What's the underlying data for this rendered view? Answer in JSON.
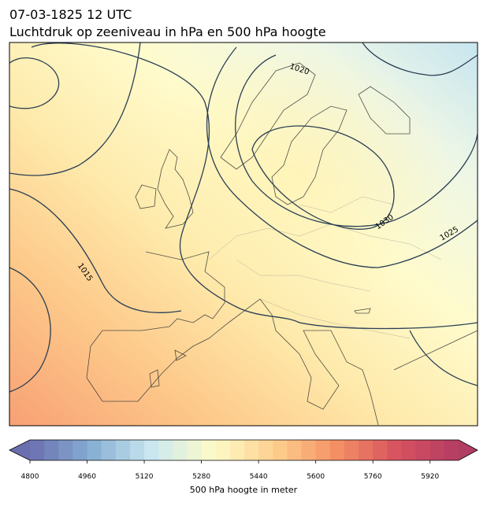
{
  "header": {
    "time": "07-03-1825 12 UTC",
    "title": "Luchtdruk op zeeniveau in hPa en 500 hPa hoogte"
  },
  "map": {
    "isobar_labels": [
      1020,
      1030,
      1025,
      1015
    ]
  },
  "colorbar": {
    "lim": [
      4800,
      6000
    ],
    "step": 40,
    "extend": "both",
    "ticks": [
      4800,
      4960,
      5120,
      5280,
      5440,
      5600,
      5760,
      5920
    ],
    "label": "500 hPa hoogte in meter",
    "cmap": [
      "#6b6fb0",
      "#86aed2",
      "#cbe8f0",
      "#fdfbc8",
      "#fdd08e",
      "#f49064",
      "#d7525f",
      "#b23d63"
    ]
  }
}
